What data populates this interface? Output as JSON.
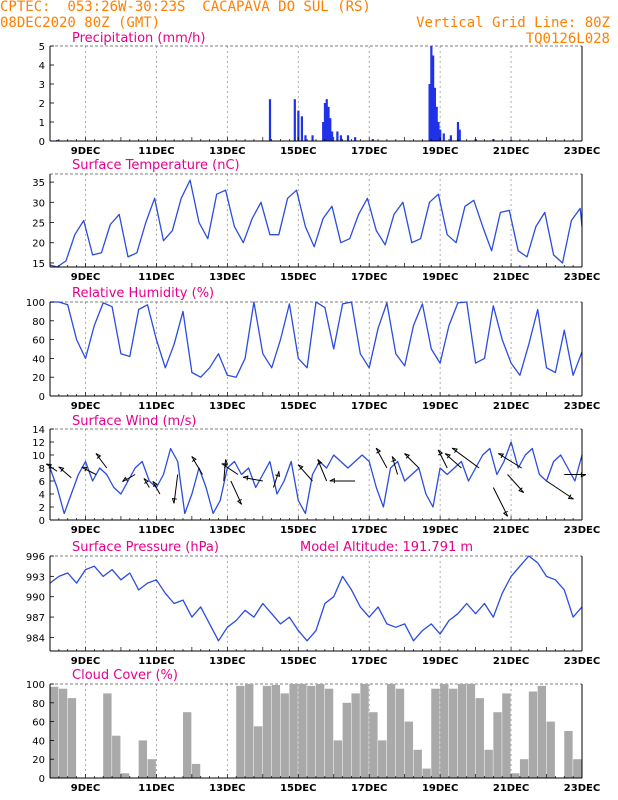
{
  "header": {
    "line1": "CPTEC:  053:26W-30:23S  CACAPAVA DO SUL (RS)",
    "line2_left": "08DEC2020 80Z (GMT)",
    "line2_right": "Vertical Grid Line: 80Z",
    "line3_right": "TQ0126L028"
  },
  "colors": {
    "header": "#ff7f00",
    "title": "#e8008c",
    "line": "#2b4ce0",
    "bar": "#1f32e8",
    "cloud": "#a9a9a9"
  },
  "x_ticks": [
    "9DEC",
    "11DEC",
    "13DEC",
    "15DEC",
    "17DEC",
    "19DEC",
    "21DEC",
    "23DEC"
  ],
  "chart_data": [
    {
      "id": "precip",
      "type": "bar",
      "title": "Precipitation (mm/h)",
      "ylim": [
        0,
        5
      ],
      "yticks": [
        0,
        1,
        2,
        3,
        4,
        5
      ],
      "bars": [
        [
          8.2,
          0.05
        ],
        [
          8.6,
          0.03
        ],
        [
          14.2,
          2.2
        ],
        [
          14.9,
          2.2
        ],
        [
          15.0,
          1.6
        ],
        [
          15.1,
          1.3
        ],
        [
          15.2,
          0.3
        ],
        [
          15.4,
          0.3
        ],
        [
          15.7,
          1.0
        ],
        [
          15.75,
          2.0
        ],
        [
          15.8,
          2.2
        ],
        [
          15.85,
          1.8
        ],
        [
          15.9,
          1.2
        ],
        [
          15.95,
          0.5
        ],
        [
          16.1,
          0.5
        ],
        [
          16.2,
          0.3
        ],
        [
          16.4,
          0.3
        ],
        [
          16.6,
          0.2
        ],
        [
          17.1,
          0.1
        ],
        [
          18.7,
          3.0
        ],
        [
          18.75,
          5.0
        ],
        [
          18.8,
          4.5
        ],
        [
          18.85,
          2.8
        ],
        [
          18.9,
          1.8
        ],
        [
          18.95,
          1.0
        ],
        [
          19.0,
          0.6
        ],
        [
          19.1,
          0.4
        ],
        [
          19.3,
          0.3
        ],
        [
          19.5,
          1.0
        ],
        [
          19.55,
          0.6
        ],
        [
          20.0,
          0.1
        ],
        [
          20.5,
          0.1
        ],
        [
          21.0,
          0.05
        ]
      ]
    },
    {
      "id": "temp",
      "type": "line",
      "title": "Surface Temperature (nC)",
      "ylim": [
        14,
        37
      ],
      "yticks": [
        15,
        20,
        25,
        30,
        35
      ],
      "x": [
        8.0,
        8.2,
        8.45,
        8.7,
        8.95,
        9.2,
        9.45,
        9.7,
        9.95,
        10.2,
        10.45,
        10.7,
        10.95,
        11.2,
        11.45,
        11.7,
        11.95,
        12.2,
        12.45,
        12.7,
        12.95,
        13.2,
        13.45,
        13.7,
        13.95,
        14.2,
        14.45,
        14.7,
        14.95,
        15.2,
        15.45,
        15.7,
        15.95,
        16.2,
        16.45,
        16.7,
        16.95,
        17.2,
        17.45,
        17.7,
        17.95,
        18.2,
        18.45,
        18.7,
        18.95,
        19.2,
        19.45,
        19.7,
        19.95,
        20.2,
        20.45,
        20.7,
        20.95,
        21.2,
        21.45,
        21.7,
        21.95,
        22.2,
        22.45,
        22.7,
        22.95,
        23.0
      ],
      "y": [
        14.5,
        14.0,
        15.5,
        22.0,
        25.5,
        17.0,
        17.5,
        24.5,
        27.0,
        16.5,
        17.5,
        25.0,
        31.0,
        20.5,
        23.0,
        31.0,
        35.5,
        25.0,
        21.0,
        32.0,
        33.0,
        24.0,
        20.0,
        26.0,
        30.0,
        22.0,
        22.0,
        31.0,
        33.0,
        24.0,
        19.0,
        26.0,
        29.0,
        20.0,
        21.0,
        27.0,
        31.0,
        23.0,
        19.5,
        27.0,
        30.0,
        20.0,
        21.0,
        30.0,
        32.0,
        22.0,
        20.0,
        29.0,
        30.5,
        24.0,
        18.0,
        27.5,
        28.0,
        18.0,
        16.5,
        24.0,
        27.5,
        17.0,
        15.0,
        25.5,
        28.5,
        24.0
      ]
    },
    {
      "id": "rh",
      "type": "line",
      "title": "Relative Humidity (%)",
      "ylim": [
        0,
        100
      ],
      "yticks": [
        0,
        20,
        40,
        60,
        80,
        100
      ],
      "x": [
        8.0,
        8.25,
        8.5,
        8.75,
        9.0,
        9.25,
        9.5,
        9.75,
        10.0,
        10.25,
        10.5,
        10.75,
        11.0,
        11.25,
        11.5,
        11.75,
        12.0,
        12.25,
        12.5,
        12.75,
        13.0,
        13.25,
        13.5,
        13.75,
        14.0,
        14.25,
        14.5,
        14.75,
        15.0,
        15.25,
        15.5,
        15.75,
        16.0,
        16.25,
        16.5,
        16.75,
        17.0,
        17.25,
        17.5,
        17.75,
        18.0,
        18.25,
        18.5,
        18.75,
        19.0,
        19.25,
        19.5,
        19.75,
        20.0,
        20.25,
        20.5,
        20.75,
        21.0,
        21.25,
        21.5,
        21.75,
        22.0,
        22.25,
        22.5,
        22.75,
        23.0
      ],
      "y": [
        100,
        100,
        97,
        60,
        40,
        75,
        99,
        95,
        45,
        42,
        92,
        97,
        60,
        30,
        55,
        90,
        25,
        20,
        30,
        45,
        22,
        20,
        40,
        100,
        45,
        30,
        60,
        98,
        40,
        30,
        100,
        94,
        50,
        98,
        100,
        45,
        30,
        72,
        99,
        45,
        32,
        75,
        98,
        50,
        35,
        75,
        99,
        100,
        35,
        40,
        96,
        60,
        35,
        22,
        55,
        92,
        30,
        25,
        70,
        22,
        47
      ]
    },
    {
      "id": "wind",
      "type": "line",
      "title": "Surface Wind (m/s)",
      "ylim": [
        0,
        14
      ],
      "yticks": [
        0,
        2,
        4,
        6,
        8,
        10,
        12,
        14
      ],
      "x": [
        8.0,
        8.2,
        8.4,
        8.6,
        8.8,
        9.0,
        9.2,
        9.4,
        9.6,
        9.8,
        10.0,
        10.2,
        10.4,
        10.6,
        10.8,
        11.0,
        11.2,
        11.4,
        11.6,
        11.8,
        12.0,
        12.2,
        12.4,
        12.6,
        12.8,
        13.0,
        13.2,
        13.4,
        13.6,
        13.8,
        14.0,
        14.2,
        14.4,
        14.6,
        14.8,
        15.0,
        15.2,
        15.4,
        15.6,
        15.8,
        16.0,
        16.2,
        16.4,
        16.6,
        16.8,
        17.0,
        17.2,
        17.4,
        17.6,
        17.8,
        18.0,
        18.2,
        18.4,
        18.6,
        18.8,
        19.0,
        19.2,
        19.4,
        19.6,
        19.8,
        20.0,
        20.2,
        20.4,
        20.6,
        20.8,
        21.0,
        21.2,
        21.4,
        21.6,
        21.8,
        22.0,
        22.2,
        22.4,
        22.6,
        22.8,
        23.0
      ],
      "y": [
        8,
        5,
        1,
        4,
        7,
        9,
        6,
        8,
        7,
        5,
        4,
        6,
        8,
        9,
        6,
        5,
        7,
        11,
        9,
        1,
        4,
        8,
        5,
        1,
        3,
        8,
        9,
        7,
        8,
        5,
        7,
        9,
        4,
        6,
        9,
        3,
        1,
        7,
        9,
        8,
        10,
        9,
        8,
        9,
        10,
        9,
        5,
        2,
        8,
        9,
        6,
        7,
        8,
        4,
        2,
        8,
        7,
        8,
        9,
        6,
        8,
        10,
        11,
        7,
        9,
        12,
        8,
        10,
        11,
        7,
        6,
        9,
        10,
        8,
        6,
        10
      ]
    },
    {
      "id": "press",
      "type": "line",
      "title": "Surface Pressure (hPa)",
      "annotation": "Model Altitude: 191.791 m",
      "ylim": [
        982,
        996
      ],
      "yticks": [
        984,
        987,
        990,
        993,
        996
      ],
      "x": [
        8.0,
        8.25,
        8.5,
        8.75,
        9.0,
        9.25,
        9.5,
        9.75,
        10.0,
        10.25,
        10.5,
        10.75,
        11.0,
        11.25,
        11.5,
        11.75,
        12.0,
        12.25,
        12.5,
        12.75,
        13.0,
        13.25,
        13.5,
        13.75,
        14.0,
        14.25,
        14.5,
        14.75,
        15.0,
        15.25,
        15.5,
        15.75,
        16.0,
        16.25,
        16.5,
        16.75,
        17.0,
        17.25,
        17.5,
        17.75,
        18.0,
        18.25,
        18.5,
        18.75,
        19.0,
        19.25,
        19.5,
        19.75,
        20.0,
        20.25,
        20.5,
        20.75,
        21.0,
        21.25,
        21.5,
        21.75,
        22.0,
        22.25,
        22.5,
        22.75,
        23.0
      ],
      "y": [
        992.0,
        993.0,
        993.5,
        992.0,
        994.0,
        994.5,
        993.0,
        994.0,
        992.5,
        993.5,
        991.0,
        992.0,
        992.5,
        990.5,
        989.0,
        989.5,
        987.0,
        988.5,
        986.0,
        983.5,
        985.5,
        986.5,
        988.0,
        987.0,
        989.0,
        987.5,
        986.0,
        987.0,
        985.0,
        983.5,
        985.0,
        989.0,
        990.0,
        993.0,
        991.0,
        988.5,
        987.0,
        988.5,
        986.0,
        985.5,
        986.0,
        983.5,
        985.0,
        986.0,
        984.5,
        986.5,
        987.5,
        989.0,
        987.5,
        989.0,
        987.0,
        990.5,
        993.0,
        994.5,
        996.0,
        995.0,
        993.0,
        992.5,
        991.0,
        987.0,
        988.5
      ]
    },
    {
      "id": "cloud",
      "type": "bar",
      "title": "Cloud Cover (%)",
      "ylim": [
        0,
        100
      ],
      "yticks": [
        0,
        20,
        40,
        60,
        80,
        100
      ],
      "x": [
        8.0,
        8.25,
        8.5,
        8.75,
        9.0,
        9.25,
        9.5,
        9.75,
        10.0,
        10.25,
        10.5,
        10.75,
        11.0,
        11.25,
        11.5,
        11.75,
        12.0,
        12.25,
        12.5,
        12.75,
        13.0,
        13.25,
        13.5,
        13.75,
        14.0,
        14.25,
        14.5,
        14.75,
        15.0,
        15.25,
        15.5,
        15.75,
        16.0,
        16.25,
        16.5,
        16.75,
        17.0,
        17.25,
        17.5,
        17.75,
        18.0,
        18.25,
        18.5,
        18.75,
        19.0,
        19.25,
        19.5,
        19.75,
        20.0,
        20.25,
        20.5,
        20.75,
        21.0,
        21.25,
        21.5,
        21.75,
        22.0,
        22.25,
        22.5,
        22.75,
        23.0
      ],
      "y": [
        97,
        95,
        85,
        0,
        0,
        0,
        90,
        45,
        5,
        0,
        40,
        20,
        0,
        0,
        0,
        70,
        15,
        0,
        0,
        0,
        0,
        98,
        100,
        55,
        98,
        99,
        90,
        100,
        100,
        98,
        100,
        95,
        40,
        80,
        90,
        100,
        70,
        40,
        100,
        95,
        60,
        30,
        10,
        95,
        100,
        95,
        100,
        100,
        85,
        30,
        70,
        90,
        5,
        20,
        92,
        98,
        60,
        0,
        50,
        20,
        0
      ]
    }
  ],
  "wind_vectors": [
    {
      "x": 8.2,
      "y": 7.5,
      "u": -0.6,
      "v": 0.4
    },
    {
      "x": 8.6,
      "y": 6.5,
      "u": -0.7,
      "v": 0.6
    },
    {
      "x": 9.3,
      "y": 7.0,
      "u": -0.8,
      "v": 0.4
    },
    {
      "x": 9.6,
      "y": 8.0,
      "u": -0.6,
      "v": 0.8
    },
    {
      "x": 10.4,
      "y": 7.0,
      "u": -0.7,
      "v": -0.4
    },
    {
      "x": 10.8,
      "y": 5.0,
      "u": -0.3,
      "v": 0.5
    },
    {
      "x": 11.1,
      "y": 4.0,
      "u": -0.4,
      "v": 0.7
    },
    {
      "x": 11.6,
      "y": 7.0,
      "u": -0.2,
      "v": -1.6
    },
    {
      "x": 12.3,
      "y": 7.0,
      "u": -0.6,
      "v": 1.0
    },
    {
      "x": 12.9,
      "y": 6.0,
      "u": 0.1,
      "v": 1.2
    },
    {
      "x": 13.1,
      "y": 6.0,
      "u": 0.6,
      "v": -1.3
    },
    {
      "x": 13.3,
      "y": 7.0,
      "u": -0.9,
      "v": 0.6
    },
    {
      "x": 14.0,
      "y": 6.0,
      "u": -1.1,
      "v": 0.2
    },
    {
      "x": 14.3,
      "y": 5.0,
      "u": 0.3,
      "v": 0.9
    },
    {
      "x": 15.4,
      "y": 6.0,
      "u": -0.8,
      "v": 0.9
    },
    {
      "x": 15.8,
      "y": 6.0,
      "u": -0.5,
      "v": 1.2
    },
    {
      "x": 16.6,
      "y": 6.0,
      "u": -1.4,
      "v": 0.0
    },
    {
      "x": 17.5,
      "y": 8.0,
      "u": -0.6,
      "v": 1.1
    },
    {
      "x": 17.8,
      "y": 7.0,
      "u": -0.3,
      "v": 1.0
    },
    {
      "x": 18.4,
      "y": 8.0,
      "u": -0.8,
      "v": 0.8
    },
    {
      "x": 19.2,
      "y": 8.0,
      "u": -0.5,
      "v": 1.0
    },
    {
      "x": 19.6,
      "y": 8.0,
      "u": -0.9,
      "v": 0.8
    },
    {
      "x": 20.1,
      "y": 8.0,
      "u": -1.5,
      "v": 1.1
    },
    {
      "x": 20.5,
      "y": 5.0,
      "u": 0.8,
      "v": -1.6
    },
    {
      "x": 20.9,
      "y": 7.0,
      "u": 0.9,
      "v": -1.0
    },
    {
      "x": 21.3,
      "y": 8.0,
      "u": -1.3,
      "v": 0.8
    },
    {
      "x": 22.0,
      "y": 6.0,
      "u": 1.5,
      "v": -1.0
    },
    {
      "x": 22.5,
      "y": 7.0,
      "u": 1.2,
      "v": 0.0
    }
  ]
}
